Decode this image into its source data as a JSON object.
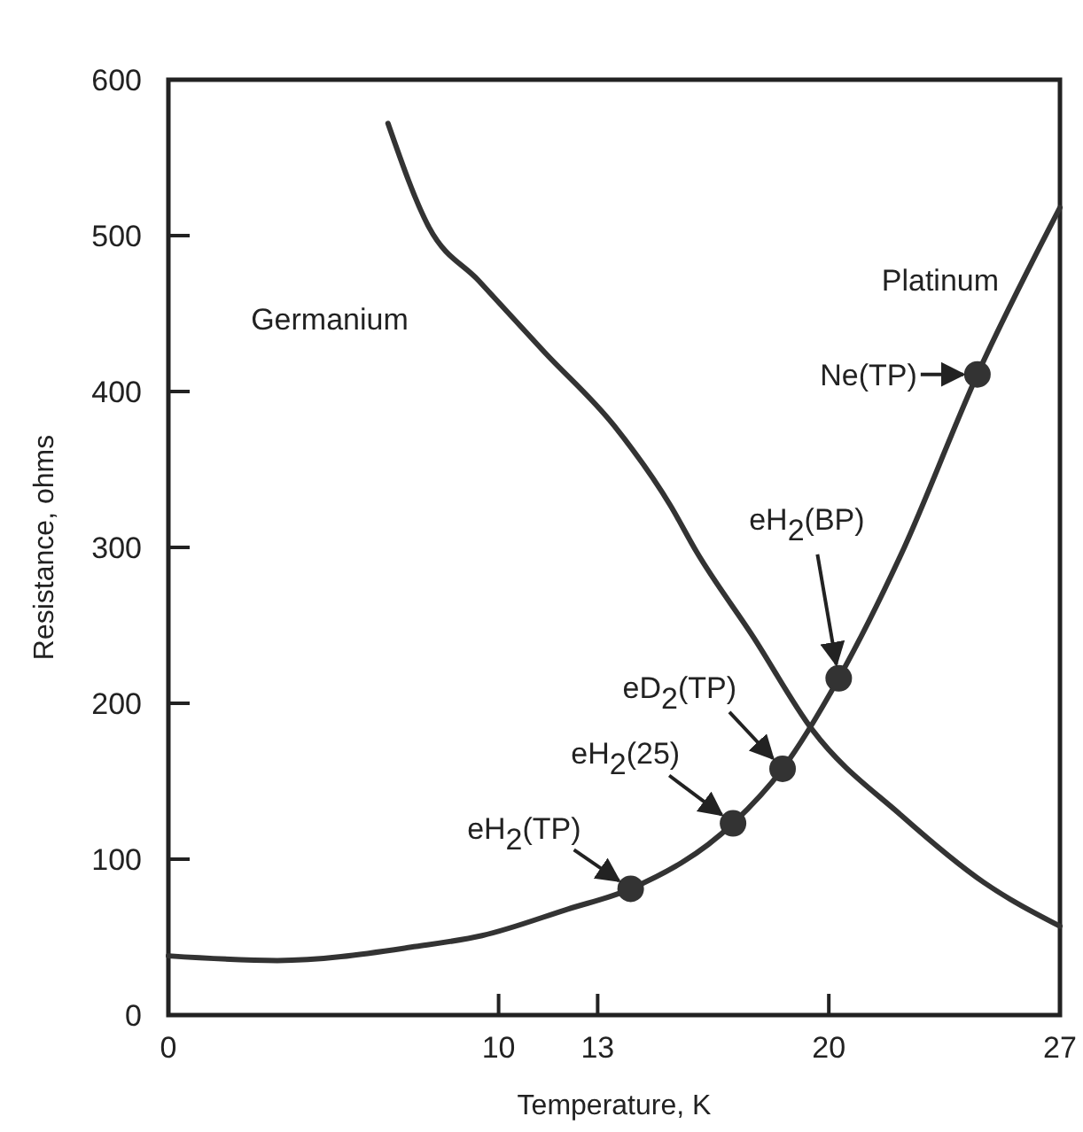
{
  "chart_data": {
    "type": "line",
    "xlabel": "Temperature, K",
    "ylabel": "Resistance, ohms",
    "xlim": [
      0,
      27
    ],
    "ylim": [
      0,
      600
    ],
    "xticks": [
      0,
      10,
      13,
      20,
      27
    ],
    "yticks": [
      0,
      100,
      200,
      300,
      400,
      500,
      600
    ],
    "grid": false,
    "line_style": "solid",
    "series": [
      {
        "name": "Germanium",
        "color": "#333333",
        "x": [
          6.65,
          7.9,
          9.4,
          11.4,
          13.5,
          15.2,
          16.0,
          17.7,
          19.5,
          22.2,
          24.7,
          27
        ],
        "values": [
          572,
          505,
          471,
          425,
          378,
          327,
          297,
          243,
          183,
          128,
          85,
          57
        ]
      },
      {
        "name": "Platinum",
        "color": "#333333",
        "x": [
          0,
          3.3,
          7.5,
          9.5,
          12.1,
          14.0,
          17.1,
          18.6,
          20.3,
          22.2,
          24.5,
          27
        ],
        "values": [
          38,
          35,
          44,
          51,
          68,
          81,
          123,
          158,
          216,
          296,
          411,
          518
        ]
      },
      {
        "type": "scatter",
        "marker": "circle",
        "color": "#333333",
        "x": [
          14.0,
          17.1,
          18.6,
          20.3,
          24.5
        ],
        "values": [
          81,
          123,
          158,
          216,
          411
        ]
      }
    ],
    "annotations": [
      {
        "text": "eH$_{2}$(TP)",
        "x": 14.0,
        "y": 81
      },
      {
        "text": "eH$_{2}$(25)",
        "x": 17.1,
        "y": 123
      },
      {
        "text": "eD$_{2}$(TP)",
        "x": 18.6,
        "y": 158
      },
      {
        "text": "eH$_{2}$(BP)",
        "x": 20.3,
        "y": 216
      },
      {
        "text": "Ne(TP)",
        "x": 24.5,
        "y": 411
      }
    ]
  }
}
